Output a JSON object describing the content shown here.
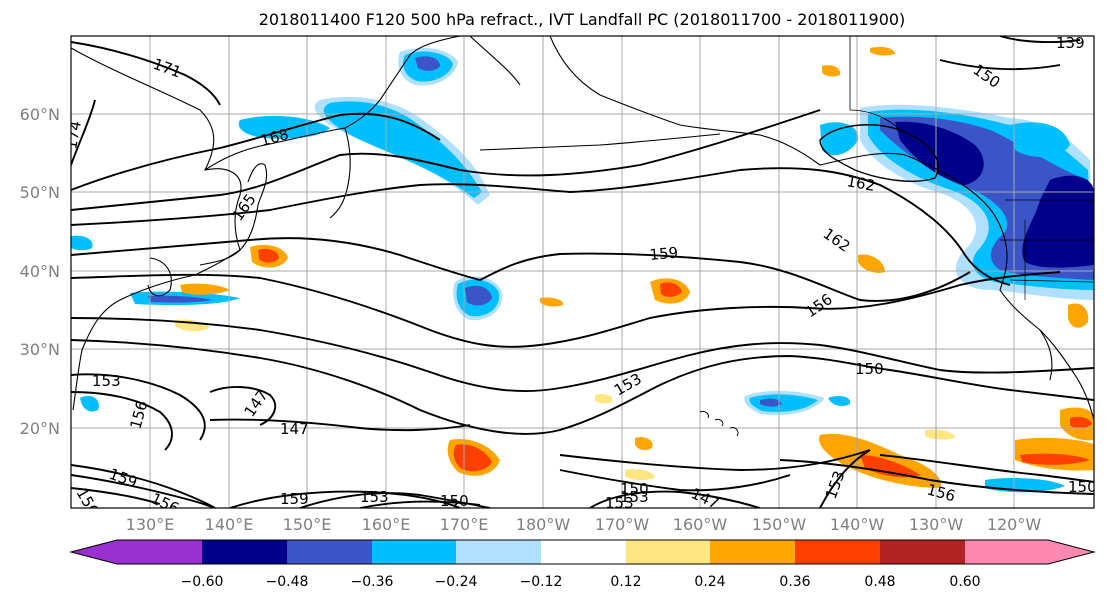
{
  "title": "2018011400 F120 500 hPa refract., IVT Landfall PC (2018011700 - 2018011900)",
  "lat_labels": [
    "60°N",
    "50°N",
    "40°N",
    "30°N",
    "20°N"
  ],
  "lon_labels": [
    "130°E",
    "140°E",
    "150°E",
    "160°E",
    "170°E",
    "180°W",
    "170°W",
    "160°W",
    "150°W",
    "140°W",
    "130°W",
    "120°W"
  ],
  "colorbar": {
    "ticks": [
      "−0.60",
      "−0.48",
      "−0.36",
      "−0.24",
      "−0.12",
      "0.12",
      "0.24",
      "0.36",
      "0.48",
      "0.60"
    ],
    "colors": [
      "#9b30d0",
      "#00008b",
      "#3a55c8",
      "#00bfff",
      "#b0e0ff",
      "#ffffff",
      "#ffe680",
      "#ffa500",
      "#ff4000",
      "#b22222",
      "#ff88b0"
    ]
  },
  "contour_labels": [
    "171",
    "174",
    "168",
    "165",
    "162",
    "162",
    "159",
    "156",
    "153",
    "150",
    "153",
    "156",
    "147",
    "147",
    "150",
    "153",
    "156",
    "159",
    "150",
    "156",
    "150",
    "153",
    "159",
    "147",
    "153",
    "156",
    "150",
    "153",
    "139"
  ]
}
